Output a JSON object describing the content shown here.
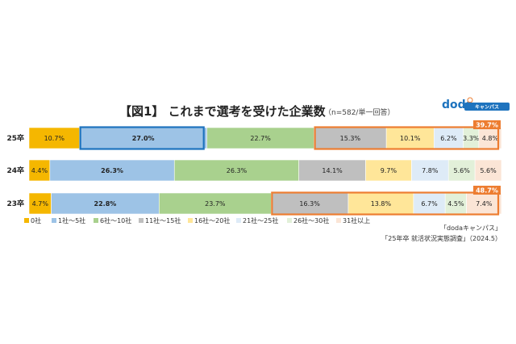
{
  "logo": {
    "name": "doda",
    "sub": "キャンパス"
  },
  "chart_data": {
    "type": "bar",
    "orientation": "horizontal-stacked-100",
    "title": "【図1】 これまで選考を受けた企業数",
    "subtitle": "（n=582/単一回答）",
    "categories": [
      "25卒",
      "24卒",
      "23卒"
    ],
    "series": [
      {
        "name": "0社",
        "color": "#F5B700",
        "values": [
          10.7,
          4.4,
          4.7
        ]
      },
      {
        "name": "1社～5社",
        "color": "#9DC3E6",
        "values": [
          27.0,
          26.3,
          22.8
        ]
      },
      {
        "name": "6社～10社",
        "color": "#A9D18E",
        "values": [
          22.7,
          26.3,
          23.7
        ]
      },
      {
        "name": "11社～15社",
        "color": "#BFBFBF",
        "values": [
          15.3,
          14.1,
          16.3
        ]
      },
      {
        "name": "16社～20社",
        "color": "#FFE699",
        "values": [
          10.1,
          9.7,
          13.8
        ]
      },
      {
        "name": "21社～25社",
        "color": "#DEEBF7",
        "values": [
          6.2,
          7.8,
          6.7
        ]
      },
      {
        "name": "26社～30社",
        "color": "#E2F0D9",
        "values": [
          3.3,
          5.6,
          4.5
        ]
      },
      {
        "name": "31社以上",
        "color": "#FBE5D6",
        "values": [
          4.8,
          5.6,
          7.4
        ]
      }
    ],
    "value_labels": [
      [
        "10.7%",
        "27.0%",
        "22.7%",
        "15.3%",
        "10.1%",
        "6.2%",
        "3.3%",
        "4.8%"
      ],
      [
        "4.4%",
        "26.3%",
        "26.3%",
        "14.1%",
        "9.7%",
        "7.8%",
        "5.6%",
        "5.6%"
      ],
      [
        "4.7%",
        "22.8%",
        "23.7%",
        "16.3%",
        "13.8%",
        "6.7%",
        "4.5%",
        "7.4%"
      ]
    ],
    "highlights": [
      {
        "row": 0,
        "series_from": 1,
        "series_to": 1,
        "color": "#1e73be"
      },
      {
        "row": 0,
        "series_from": 3,
        "series_to": 7,
        "color": "#ED7D31",
        "badge": "39.7%"
      },
      {
        "row": 2,
        "series_from": 3,
        "series_to": 7,
        "color": "#ED7D31",
        "badge": "48.7%"
      }
    ],
    "legend_position": "bottom",
    "grid": false
  },
  "source": {
    "line1": "「dodaキャンパス」",
    "line2": "「25年卒 就活状況実態調査」（2024.5）"
  }
}
